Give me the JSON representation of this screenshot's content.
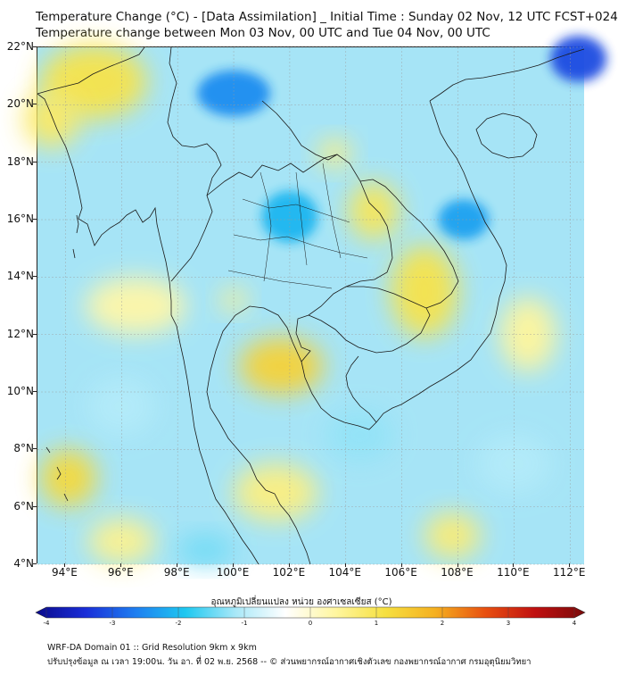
{
  "title": {
    "line1": "Temperature Change (°C) - [Data Assimilation] _ Initial Time : Sunday 02 Nov, 12 UTC FCST+024",
    "line2": "Temperature change between Mon 03 Nov, 00 UTC and Tue 04 Nov, 00 UTC"
  },
  "map": {
    "lat_range": [
      4,
      22
    ],
    "lon_range": [
      93,
      112.5
    ],
    "lat_ticks": [
      "22°N",
      "20°N",
      "18°N",
      "16°N",
      "14°N",
      "12°N",
      "10°N",
      "8°N",
      "6°N",
      "4°N"
    ],
    "lat_values": [
      22,
      20,
      18,
      16,
      14,
      12,
      10,
      8,
      6,
      4
    ],
    "lon_ticks": [
      "94°E",
      "96°E",
      "98°E",
      "100°E",
      "102°E",
      "104°E",
      "106°E",
      "108°E",
      "110°E",
      "112°E"
    ],
    "lon_values": [
      94,
      96,
      98,
      100,
      102,
      104,
      106,
      108,
      110,
      112
    ]
  },
  "colorbar": {
    "label": "อุณหภูมิเปลี่ยนแปลง หน่วย องศาเซลเซียส (°C)",
    "ticks": [
      "-4",
      "-3",
      "-2",
      "-1",
      "0",
      "1",
      "2",
      "3",
      "4"
    ],
    "min": -4,
    "max": 4,
    "colors": [
      "#0a0a8c",
      "#1a2ed8",
      "#1e7ef0",
      "#1ec8f0",
      "#a8e8f8",
      "#ffffff",
      "#fff6a0",
      "#f6e040",
      "#f5b020",
      "#e85010",
      "#c01010",
      "#7a0a0a"
    ]
  },
  "field": {
    "background": "#a6e4f6",
    "anomalies": [
      {
        "lon": 95.0,
        "lat": 20.8,
        "rx": 1.9,
        "ry": 1.3,
        "value": 1.0
      },
      {
        "lon": 93.5,
        "lat": 19.5,
        "rx": 1.0,
        "ry": 1.0,
        "value": 0.8
      },
      {
        "lon": 100.0,
        "lat": 20.4,
        "rx": 1.3,
        "ry": 0.8,
        "value": -2.4
      },
      {
        "lon": 102.0,
        "lat": 16.1,
        "rx": 1.0,
        "ry": 0.9,
        "value": -2.0
      },
      {
        "lon": 108.2,
        "lat": 16.0,
        "rx": 0.9,
        "ry": 0.7,
        "value": -2.2
      },
      {
        "lon": 112.3,
        "lat": 21.6,
        "rx": 1.0,
        "ry": 0.8,
        "value": -3.0
      },
      {
        "lon": 105.0,
        "lat": 16.3,
        "rx": 0.9,
        "ry": 1.0,
        "value": 0.9
      },
      {
        "lon": 106.8,
        "lat": 13.5,
        "rx": 1.2,
        "ry": 1.6,
        "value": 1.0
      },
      {
        "lon": 103.6,
        "lat": 18.3,
        "rx": 0.6,
        "ry": 0.5,
        "value": 0.6
      },
      {
        "lon": 101.7,
        "lat": 10.9,
        "rx": 1.5,
        "ry": 1.0,
        "value": 1.3
      },
      {
        "lon": 94.1,
        "lat": 7.0,
        "rx": 1.0,
        "ry": 1.0,
        "value": 1.2
      },
      {
        "lon": 101.5,
        "lat": 6.5,
        "rx": 1.5,
        "ry": 1.0,
        "value": 0.6
      },
      {
        "lon": 107.8,
        "lat": 5.0,
        "rx": 1.0,
        "ry": 0.8,
        "value": 0.7
      },
      {
        "lon": 96.0,
        "lat": 4.8,
        "rx": 1.2,
        "ry": 0.8,
        "value": 0.5
      },
      {
        "lon": 99.0,
        "lat": 4.5,
        "rx": 1.0,
        "ry": 0.5,
        "value": -1.4
      },
      {
        "lon": 96.5,
        "lat": 13.0,
        "rx": 1.8,
        "ry": 1.0,
        "value": 0.3
      },
      {
        "lon": 110.5,
        "lat": 12.0,
        "rx": 1.0,
        "ry": 1.3,
        "value": 0.4
      },
      {
        "lon": 100.0,
        "lat": 13.2,
        "rx": 0.5,
        "ry": 0.4,
        "value": 0.5
      },
      {
        "lon": 96.0,
        "lat": 9.5,
        "rx": 1.2,
        "ry": 1.0,
        "value": -1.0
      },
      {
        "lon": 104.5,
        "lat": 8.5,
        "rx": 1.2,
        "ry": 0.9,
        "value": -1.2
      },
      {
        "lon": 110.0,
        "lat": 7.5,
        "rx": 1.3,
        "ry": 1.0,
        "value": -1.0
      }
    ]
  },
  "footer": {
    "line1": "WRF-DA Domain 01 :: Grid Resolution 9km x 9km",
    "line2": "ปรับปรุงข้อมูล ณ เวลา 19:00น. วัน อา. ที่ 02 พ.ย. 2568 -- © ส่วนพยากรณ์อากาศเชิงตัวเลข กองพยากรณ์อากาศ กรมอุตุนิยมวิทยา"
  }
}
